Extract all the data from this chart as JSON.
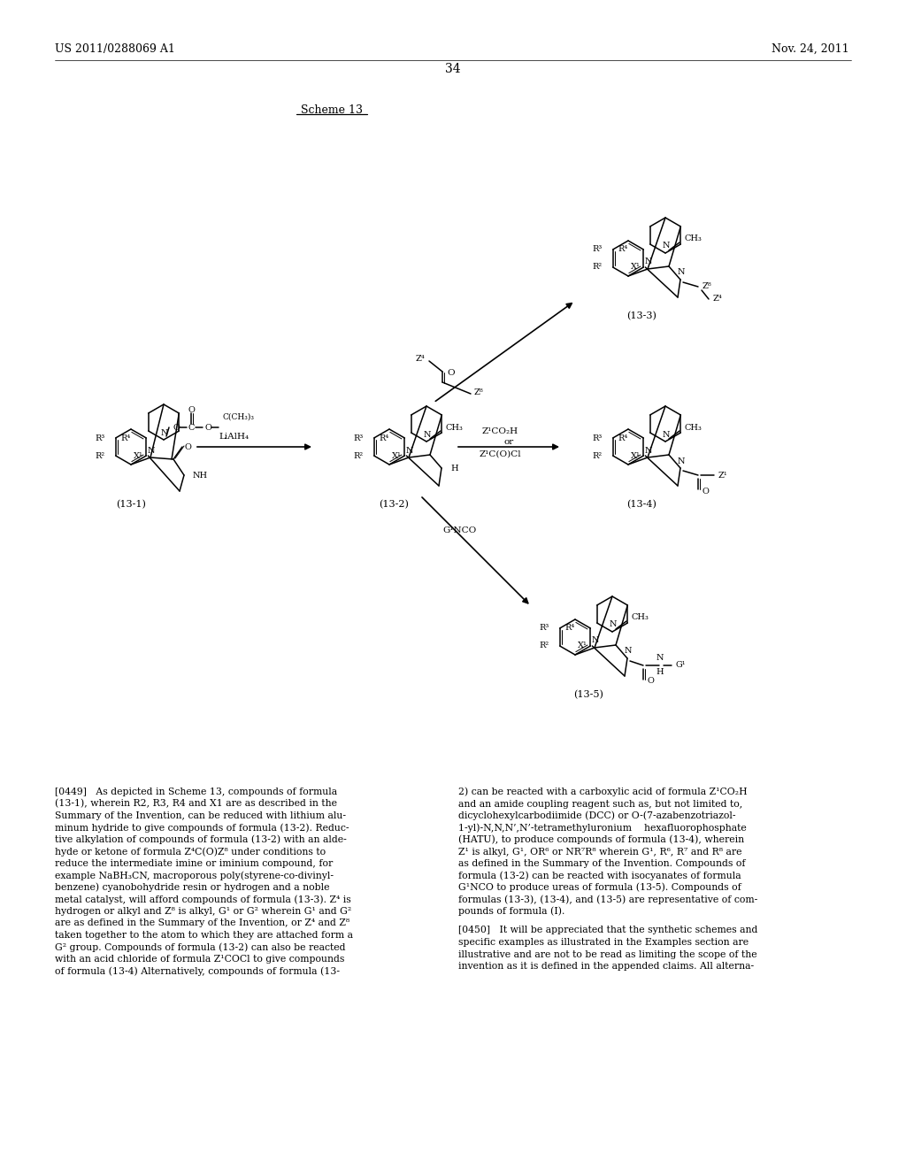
{
  "patent_number": "US 2011/0288069 A1",
  "patent_date": "Nov. 24, 2011",
  "page_number": "34",
  "scheme_label": "Scheme 13",
  "background_color": "#ffffff"
}
